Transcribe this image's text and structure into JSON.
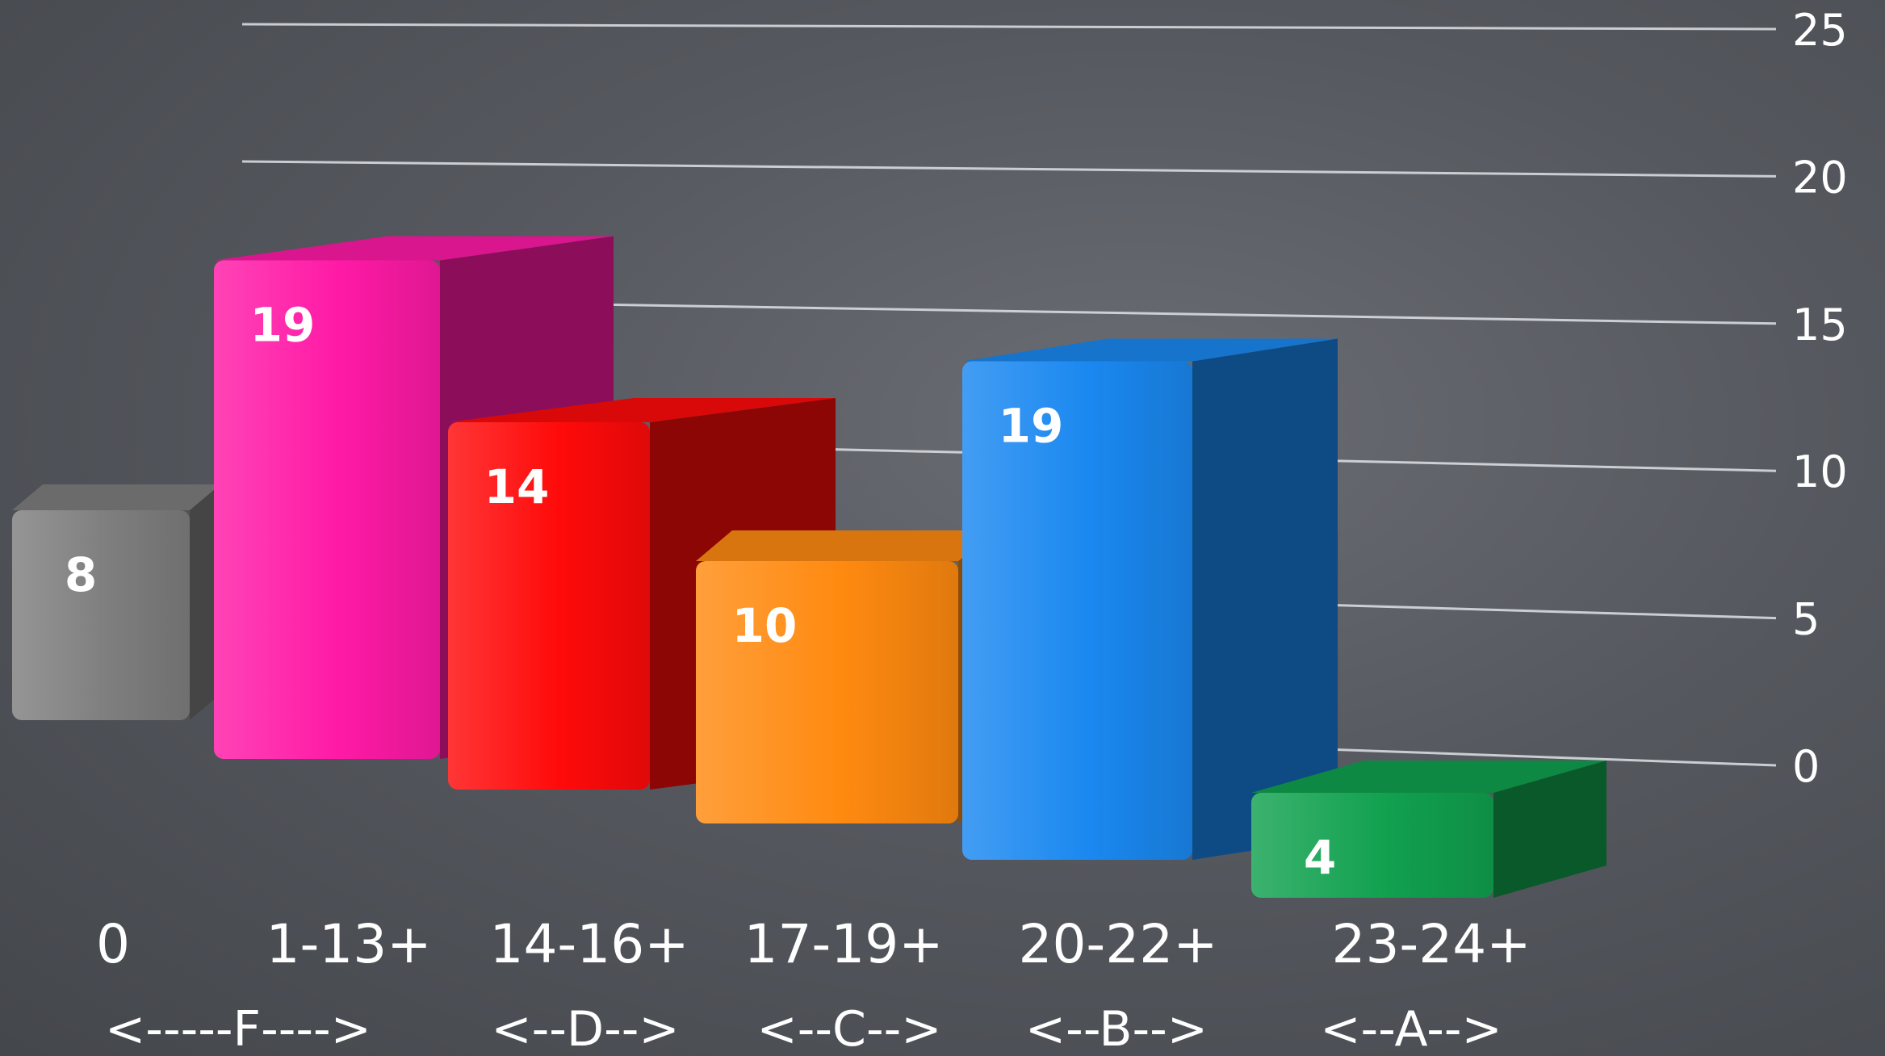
{
  "chart_data": {
    "type": "bar",
    "categories": [
      "0",
      "1-13+",
      "14-16+",
      "17-19+",
      "20-22+",
      "23-24+"
    ],
    "values": [
      8,
      19,
      14,
      10,
      19,
      4
    ],
    "grade_ranges": [
      "<-----F---->",
      "<--D-->",
      "<--C-->",
      "<--B-->",
      "<--A-->"
    ],
    "ylim": [
      0,
      25
    ],
    "yticks": [
      "0",
      "5",
      "10",
      "15",
      "20",
      "25"
    ],
    "bar_colors": [
      "#7e7e7e",
      "#ff1aa6",
      "#ff0a0a",
      "#ff8a10",
      "#1a88f0",
      "#11a14f"
    ],
    "grid": true,
    "title": "",
    "xlabel": "",
    "ylabel": ""
  }
}
